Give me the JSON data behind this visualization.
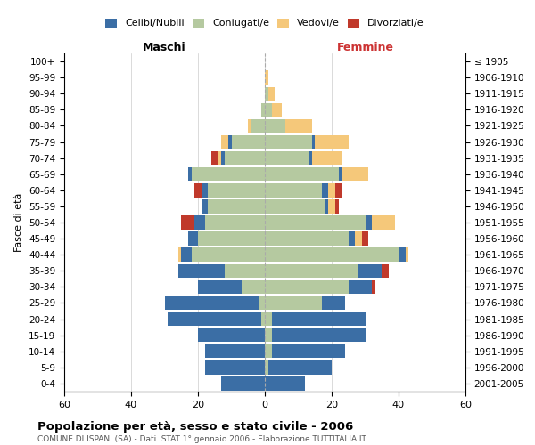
{
  "age_groups": [
    "0-4",
    "5-9",
    "10-14",
    "15-19",
    "20-24",
    "25-29",
    "30-34",
    "35-39",
    "40-44",
    "45-49",
    "50-54",
    "55-59",
    "60-64",
    "65-69",
    "70-74",
    "75-79",
    "80-84",
    "85-89",
    "90-94",
    "95-99",
    "100+"
  ],
  "birth_years": [
    "2001-2005",
    "1996-2000",
    "1991-1995",
    "1986-1990",
    "1981-1985",
    "1976-1980",
    "1971-1975",
    "1966-1970",
    "1961-1965",
    "1956-1960",
    "1951-1955",
    "1946-1950",
    "1941-1945",
    "1936-1940",
    "1931-1935",
    "1926-1930",
    "1921-1925",
    "1916-1920",
    "1911-1915",
    "1906-1910",
    "≤ 1905"
  ],
  "maschi": {
    "celibi": [
      13,
      18,
      18,
      20,
      28,
      28,
      13,
      14,
      3,
      3,
      3,
      2,
      2,
      1,
      1,
      1,
      0,
      0,
      0,
      0,
      0
    ],
    "coniugati": [
      0,
      0,
      0,
      0,
      1,
      2,
      7,
      12,
      22,
      20,
      18,
      17,
      17,
      22,
      12,
      10,
      4,
      1,
      0,
      0,
      0
    ],
    "vedovi": [
      0,
      0,
      0,
      0,
      0,
      0,
      0,
      0,
      1,
      0,
      0,
      0,
      0,
      0,
      1,
      2,
      1,
      0,
      0,
      0,
      0
    ],
    "divorziati": [
      0,
      0,
      0,
      0,
      0,
      0,
      0,
      0,
      0,
      0,
      4,
      0,
      2,
      0,
      2,
      0,
      0,
      0,
      0,
      0,
      0
    ]
  },
  "femmine": {
    "nubili": [
      12,
      19,
      22,
      28,
      28,
      7,
      7,
      7,
      2,
      2,
      2,
      1,
      2,
      1,
      1,
      1,
      0,
      0,
      0,
      0,
      0
    ],
    "coniugate": [
      0,
      1,
      2,
      2,
      2,
      17,
      25,
      28,
      40,
      25,
      30,
      18,
      17,
      22,
      13,
      14,
      6,
      2,
      1,
      0,
      0
    ],
    "vedove": [
      0,
      0,
      0,
      0,
      0,
      0,
      0,
      0,
      1,
      2,
      7,
      2,
      2,
      8,
      9,
      10,
      8,
      3,
      2,
      1,
      0
    ],
    "divorziate": [
      0,
      0,
      0,
      0,
      0,
      0,
      1,
      2,
      0,
      2,
      0,
      1,
      2,
      0,
      0,
      0,
      0,
      0,
      0,
      0,
      0
    ]
  },
  "colors": {
    "celibi": "#3B6EA5",
    "coniugati": "#B5C9A0",
    "vedovi": "#F5C87A",
    "divorziati": "#C0392B"
  },
  "title": "Popolazione per età, sesso e stato civile - 2006",
  "subtitle": "COMUNE DI ISPANI (SA) - Dati ISTAT 1° gennaio 2006 - Elaborazione TUTTITALIA.IT",
  "xlabel_left": "Maschi",
  "xlabel_right": "Femmine",
  "ylabel_left": "Fasce di età",
  "xlim": 60,
  "bg_color": "#ffffff",
  "grid_color": "#cccccc"
}
